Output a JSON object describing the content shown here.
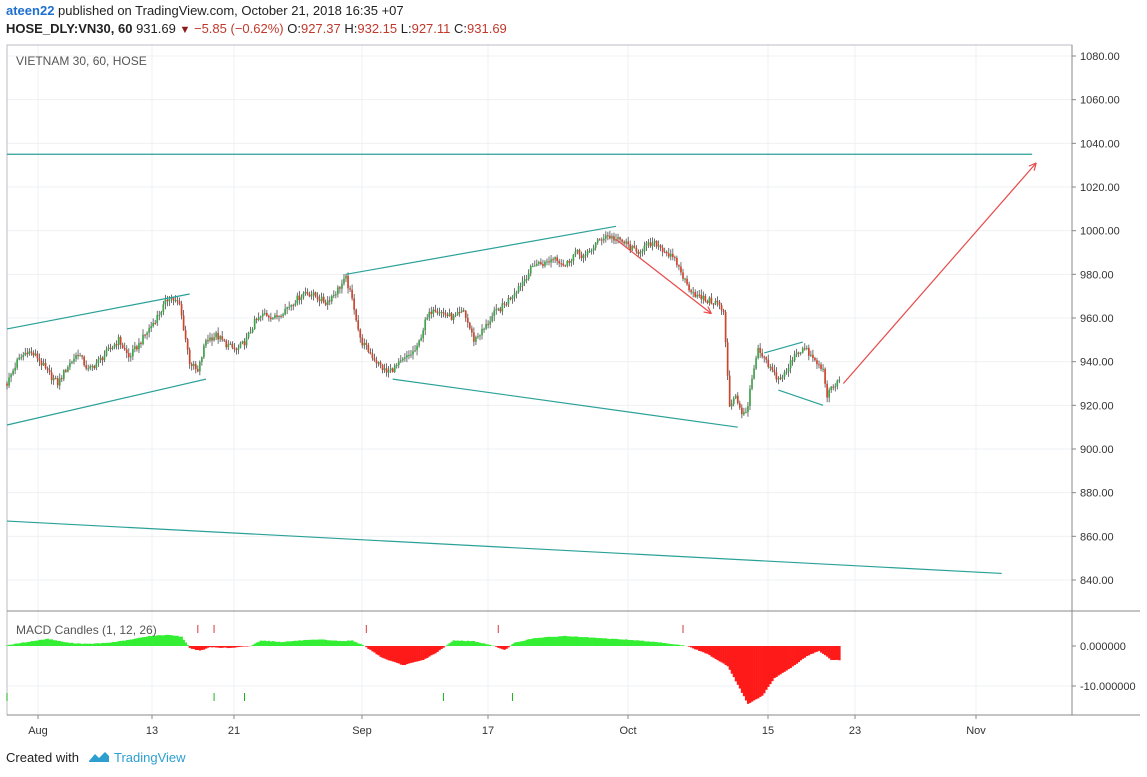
{
  "header": {
    "user": "ateen22",
    "published": "published on TradingView.com, October 21, 2018 16:35 +07",
    "symbol": "HOSE_DLY:VN30, 60",
    "last": "931.69",
    "arrow": "▼",
    "change": "−5.85 (−0.62%)",
    "o_label": "O:",
    "o_value": "927.37",
    "h_label": "H:",
    "h_value": "932.15",
    "l_label": "L:",
    "l_value": "927.11",
    "c_label": "C:",
    "c_value": "931.69"
  },
  "footer": {
    "created_with": "Created with",
    "brand": "TradingView"
  },
  "colors": {
    "up": "#3ea34a",
    "down": "#d0442c",
    "trend": "#2aa198",
    "arrow": "#e84b4b",
    "macd_pos": "#33ee33",
    "macd_neg": "#ff1a1a",
    "grid": "#eef0f3"
  },
  "chart_data": [
    {
      "type": "candlestick",
      "title": "VIETNAM 30, 60, HOSE",
      "x_tick_labels": [
        "Aug",
        "13",
        "21",
        "Sep",
        "17",
        "Oct",
        "15",
        "23",
        "Nov"
      ],
      "ylim": [
        825,
        1087
      ],
      "y_ticks": [
        840,
        860,
        880,
        900,
        920,
        940,
        960,
        980,
        1000,
        1020,
        1040,
        1060,
        1080
      ],
      "y_tick_labels": [
        "840.00",
        "860.00",
        "880.00",
        "900.00",
        "920.00",
        "940.00",
        "960.00",
        "980.00",
        "1000.00",
        "1020.00",
        "1040.00",
        "1060.00",
        "1080.00"
      ],
      "grid": true,
      "last_close": 931.69,
      "price_path": [
        [
          0,
          930
        ],
        [
          5,
          940
        ],
        [
          10,
          945
        ],
        [
          15,
          942
        ],
        [
          20,
          935
        ],
        [
          25,
          930
        ],
        [
          30,
          938
        ],
        [
          35,
          944
        ],
        [
          40,
          936
        ],
        [
          45,
          940
        ],
        [
          50,
          945
        ],
        [
          55,
          950
        ],
        [
          60,
          942
        ],
        [
          65,
          948
        ],
        [
          70,
          955
        ],
        [
          75,
          962
        ],
        [
          80,
          970
        ],
        [
          85,
          966
        ],
        [
          90,
          940
        ],
        [
          94,
          935
        ],
        [
          98,
          950
        ],
        [
          103,
          952
        ],
        [
          108,
          948
        ],
        [
          113,
          945
        ],
        [
          118,
          950
        ],
        [
          122,
          958
        ],
        [
          127,
          962
        ],
        [
          132,
          960
        ],
        [
          137,
          964
        ],
        [
          142,
          968
        ],
        [
          147,
          972
        ],
        [
          152,
          970
        ],
        [
          157,
          967
        ],
        [
          162,
          972
        ],
        [
          167,
          978
        ],
        [
          171,
          965
        ],
        [
          174,
          950
        ],
        [
          178,
          945
        ],
        [
          182,
          940
        ],
        [
          187,
          935
        ],
        [
          192,
          938
        ],
        [
          197,
          942
        ],
        [
          202,
          946
        ],
        [
          206,
          958
        ],
        [
          210,
          965
        ],
        [
          215,
          962
        ],
        [
          220,
          960
        ],
        [
          225,
          963
        ],
        [
          230,
          950
        ],
        [
          235,
          955
        ],
        [
          240,
          962
        ],
        [
          245,
          966
        ],
        [
          250,
          972
        ],
        [
          255,
          978
        ],
        [
          260,
          985
        ],
        [
          265,
          985
        ],
        [
          270,
          988
        ],
        [
          275,
          984
        ],
        [
          280,
          990
        ],
        [
          285,
          988
        ],
        [
          290,
          994
        ],
        [
          295,
          998
        ],
        [
          300,
          996
        ],
        [
          305,
          994
        ],
        [
          310,
          990
        ],
        [
          315,
          993
        ],
        [
          320,
          994
        ],
        [
          325,
          990
        ],
        [
          330,
          985
        ],
        [
          335,
          975
        ],
        [
          340,
          970
        ],
        [
          345,
          968
        ],
        [
          350,
          967
        ],
        [
          353,
          962
        ],
        [
          356,
          920
        ],
        [
          359,
          925
        ],
        [
          362,
          915
        ],
        [
          365,
          920
        ],
        [
          367,
          932
        ],
        [
          370,
          945
        ],
        [
          375,
          938
        ],
        [
          380,
          932
        ],
        [
          384,
          935
        ],
        [
          388,
          944
        ],
        [
          393,
          946
        ],
        [
          398,
          940
        ],
        [
          402,
          936
        ],
        [
          404,
          925
        ],
        [
          407,
          928
        ],
        [
          410,
          931.69
        ]
      ],
      "trend_lines": [
        {
          "from": [
            0,
            955
          ],
          "to": [
            90,
            971
          ]
        },
        {
          "from": [
            0,
            911
          ],
          "to": [
            98,
            932
          ]
        },
        {
          "from": [
            167,
            980
          ],
          "to": [
            300,
            1002
          ]
        },
        {
          "from": [
            190,
            932
          ],
          "to": [
            360,
            910
          ]
        },
        {
          "from": [
            373,
            944
          ],
          "to": [
            392,
            949
          ]
        },
        {
          "from": [
            380,
            927
          ],
          "to": [
            402,
            920
          ]
        },
        {
          "from": [
            0,
            867
          ],
          "to": [
            490,
            843
          ]
        },
        {
          "from": [
            0,
            1035
          ],
          "to": [
            505,
            1035
          ]
        }
      ],
      "arrows": [
        {
          "from": [
            300,
            996
          ],
          "to": [
            347,
            962
          ]
        },
        {
          "from": [
            412,
            930
          ],
          "to": [
            507,
            1031
          ]
        }
      ]
    },
    {
      "type": "area",
      "title": "MACD Candles (1, 12, 26)",
      "ylim": [
        -15.2,
        3.8
      ],
      "y_ticks": [
        0,
        -10
      ],
      "y_tick_labels": [
        "0.000000",
        "-10.000000"
      ],
      "macd_path": [
        [
          0,
          0.2
        ],
        [
          10,
          1.0
        ],
        [
          20,
          1.8
        ],
        [
          30,
          0.8
        ],
        [
          40,
          0.5
        ],
        [
          50,
          0.8
        ],
        [
          60,
          1.5
        ],
        [
          70,
          2.5
        ],
        [
          80,
          2.8
        ],
        [
          86,
          2.3
        ],
        [
          90,
          -0.5
        ],
        [
          95,
          -1.2
        ],
        [
          100,
          -0.3
        ],
        [
          110,
          -0.5
        ],
        [
          120,
          0.0
        ],
        [
          125,
          1.4
        ],
        [
          135,
          1.0
        ],
        [
          145,
          1.4
        ],
        [
          155,
          1.6
        ],
        [
          165,
          1.2
        ],
        [
          170,
          1.4
        ],
        [
          176,
          0.0
        ],
        [
          185,
          -3.0
        ],
        [
          195,
          -4.8
        ],
        [
          205,
          -3.5
        ],
        [
          212,
          -1.5
        ],
        [
          220,
          1.4
        ],
        [
          230,
          1.2
        ],
        [
          240,
          0.0
        ],
        [
          245,
          -1.0
        ],
        [
          250,
          0.8
        ],
        [
          260,
          2.0
        ],
        [
          275,
          2.5
        ],
        [
          290,
          2.0
        ],
        [
          305,
          1.6
        ],
        [
          320,
          1.0
        ],
        [
          335,
          0.0
        ],
        [
          345,
          -2.0
        ],
        [
          355,
          -5.0
        ],
        [
          365,
          -14.5
        ],
        [
          372,
          -12.5
        ],
        [
          378,
          -8.0
        ],
        [
          386,
          -5.5
        ],
        [
          394,
          -2.5
        ],
        [
          400,
          -1.2
        ],
        [
          406,
          -3.5
        ],
        [
          410,
          -3.5
        ]
      ],
      "buy_markers": [
        0,
        102,
        117,
        215,
        249
      ],
      "sell_markers": [
        94,
        102,
        177,
        242,
        333
      ]
    }
  ]
}
